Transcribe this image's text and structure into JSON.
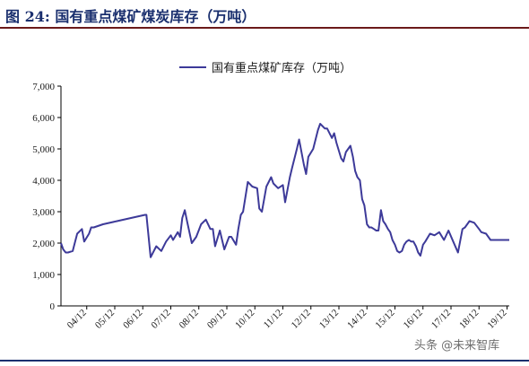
{
  "figure": {
    "title": "图 24:  国有重点煤矿煤炭库存（万吨）"
  },
  "watermark": "头条 @未来智库",
  "chart_data": {
    "type": "line",
    "title": "",
    "xlabel": "",
    "ylabel": "",
    "ylim": [
      0,
      7000
    ],
    "yticks": [
      "0",
      "1,000",
      "2,000",
      "3,000",
      "4,000",
      "5,000",
      "6,000",
      "7,000"
    ],
    "yticks_values": [
      0,
      1000,
      2000,
      3000,
      4000,
      5000,
      6000,
      7000
    ],
    "xticks": [
      "04/12",
      "05/12",
      "06/12",
      "07/12",
      "08/12",
      "09/12",
      "10/12",
      "11/12",
      "12/12",
      "13/12",
      "14/12",
      "15/12",
      "16/12",
      "17/12",
      "18/12",
      "19/12"
    ],
    "legend": {
      "placement": "top-center"
    },
    "line_color": "#3d3a99",
    "series": [
      {
        "name": "国有重点煤矿库存（万吨）",
        "x": [
          2004.0,
          2004.08,
          2004.17,
          2004.25,
          2004.42,
          2004.58,
          2004.75,
          2004.83,
          2005.0,
          2005.08,
          2005.17,
          2005.5,
          2006.0,
          2006.5,
          2007.0,
          2007.05,
          2007.2,
          2007.4,
          2007.58,
          2007.75,
          2007.92,
          2008.0,
          2008.17,
          2008.25,
          2008.33,
          2008.42,
          2008.5,
          2008.67,
          2008.83,
          2009.0,
          2009.17,
          2009.33,
          2009.42,
          2009.5,
          2009.67,
          2009.83,
          2010.0,
          2010.08,
          2010.25,
          2010.33,
          2010.42,
          2010.5,
          2010.67,
          2010.83,
          2011.0,
          2011.08,
          2011.17,
          2011.33,
          2011.5,
          2011.58,
          2011.75,
          2011.92,
          2012.0,
          2012.17,
          2012.25,
          2012.42,
          2012.5,
          2012.67,
          2012.75,
          2012.83,
          2013.0,
          2013.17,
          2013.25,
          2013.42,
          2013.5,
          2013.67,
          2013.75,
          2013.83,
          2014.0,
          2014.08,
          2014.17,
          2014.25,
          2014.33,
          2014.42,
          2014.5,
          2014.58,
          2014.67,
          2014.75,
          2014.83,
          2014.92,
          2015.0,
          2015.08,
          2015.17,
          2015.25,
          2015.33,
          2015.42,
          2015.5,
          2015.58,
          2015.67,
          2015.75,
          2015.83,
          2015.92,
          2016.0,
          2016.08,
          2016.17,
          2016.25,
          2016.33,
          2016.42,
          2016.5,
          2016.58,
          2016.67,
          2016.75,
          2016.83,
          2016.92,
          2017.0,
          2017.17,
          2017.33,
          2017.5,
          2017.67,
          2017.83,
          2018.0,
          2018.17,
          2018.33,
          2018.42,
          2018.58,
          2018.75,
          2018.92,
          2019.0,
          2019.17,
          2019.33,
          2019.42,
          2019.5,
          2019.67,
          2019.83,
          2019.92,
          2020.0
        ],
        "y": [
          2000,
          1800,
          1700,
          1700,
          1750,
          2300,
          2450,
          2050,
          2300,
          2500,
          2500,
          2600,
          2700,
          2800,
          2900,
          2900,
          1550,
          1900,
          1750,
          2050,
          2250,
          2100,
          2350,
          2200,
          2800,
          3050,
          2700,
          2000,
          2200,
          2600,
          2750,
          2450,
          2450,
          1900,
          2400,
          1800,
          2200,
          2200,
          1950,
          2450,
          2900,
          3000,
          3950,
          3800,
          3750,
          3100,
          3000,
          3800,
          4100,
          3900,
          3750,
          3850,
          3300,
          4100,
          4400,
          5000,
          5300,
          4500,
          4200,
          4750,
          5000,
          5600,
          5800,
          5650,
          5650,
          5350,
          5500,
          5200,
          4700,
          4600,
          4900,
          5000,
          5100,
          4750,
          4300,
          4100,
          4000,
          3400,
          3200,
          2600,
          2500,
          2500,
          2450,
          2400,
          2400,
          3050,
          2700,
          2600,
          2450,
          2350,
          2100,
          1950,
          1750,
          1700,
          1750,
          1950,
          2050,
          2100,
          2050,
          2050,
          1900,
          1700,
          1600,
          1950,
          2050,
          2300,
          2250,
          2350,
          2100,
          2400,
          2050,
          1700,
          2450,
          2500,
          2700,
          2650,
          2450,
          2350,
          2300,
          2100,
          2100,
          2100,
          2100,
          2100,
          2100,
          2100
        ]
      }
    ]
  }
}
